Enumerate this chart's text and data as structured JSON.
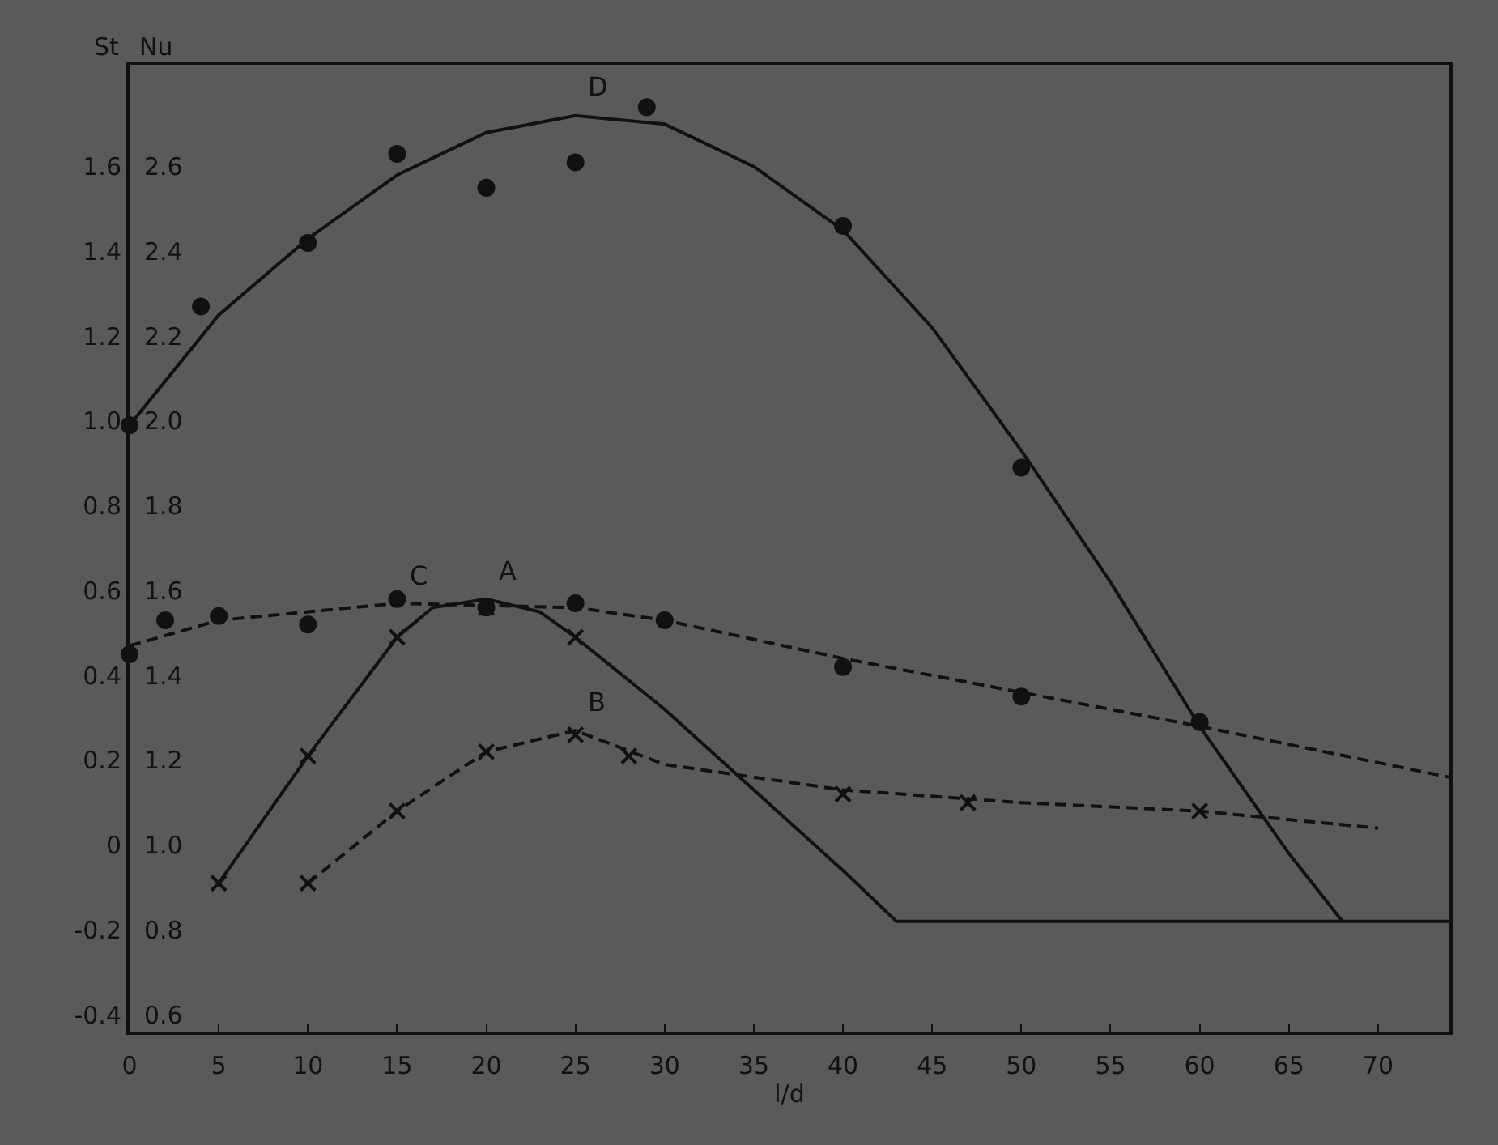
{
  "chart_data": {
    "type": "line",
    "xlabel": "l/d",
    "ylabel": "St",
    "y2label": "Nu",
    "xlim": [
      0,
      74
    ],
    "xticks": [
      0,
      5,
      10,
      15,
      20,
      25,
      30,
      35,
      40,
      45,
      50,
      55,
      60,
      65,
      70
    ],
    "ylim": [
      -0.44,
      1.84
    ],
    "yticks": [
      -0.4,
      -0.2,
      0,
      0.2,
      0.4,
      0.6,
      0.8,
      {
        "value": 1,
        "label": "1.0"
      },
      1.2,
      1.4,
      1.6
    ],
    "y2lim": [
      0.56,
      2.84
    ],
    "y2ticks": [
      0.6,
      0.8,
      {
        "value": 1,
        "label": "1.0"
      },
      1.2,
      1.4,
      1.6,
      1.8,
      {
        "value": 2,
        "label": "2.0"
      },
      2.2,
      2.4,
      2.6
    ],
    "grid": false,
    "series": [
      {
        "name": "D",
        "color": "#111111",
        "marker": "none",
        "line_style": "solid",
        "x": [
          0,
          5,
          10,
          15,
          20,
          25,
          30,
          35,
          40,
          45,
          50,
          55,
          60,
          65,
          68
        ],
        "values": [
          0.99,
          1.25,
          1.43,
          1.58,
          1.68,
          1.72,
          1.7,
          1.6,
          1.45,
          1.22,
          0.93,
          0.62,
          0.28,
          -0.02,
          -0.18
        ]
      },
      {
        "type": "scatter",
        "color": "#111111",
        "marker": "circle",
        "x": [
          0,
          4,
          10,
          15,
          20,
          25,
          29,
          40,
          50
        ],
        "values": [
          0.99,
          1.27,
          1.42,
          1.63,
          1.55,
          1.61,
          1.74,
          1.46,
          0.89
        ]
      },
      {
        "name": "C",
        "color": "#111111",
        "marker": "none",
        "line_style": "dashed",
        "x": [
          0,
          5,
          15,
          25,
          30,
          40,
          50,
          60,
          74
        ],
        "values": [
          0.47,
          0.53,
          0.57,
          0.56,
          0.53,
          0.44,
          0.36,
          0.28,
          0.16
        ]
      },
      {
        "type": "scatter",
        "color": "#111111",
        "marker": "circle",
        "x": [
          0,
          2,
          5,
          10,
          15,
          20,
          25,
          30,
          40,
          50,
          60
        ],
        "values": [
          0.45,
          0.53,
          0.54,
          0.52,
          0.58,
          0.56,
          0.57,
          0.53,
          0.42,
          0.35,
          0.29
        ]
      },
      {
        "name": "A",
        "color": "#111111",
        "marker": "none",
        "line_style": "solid",
        "x": [
          5,
          10,
          15,
          17,
          20,
          23,
          25,
          30,
          35,
          40,
          43,
          74
        ],
        "values": [
          -0.09,
          0.21,
          0.49,
          0.56,
          0.58,
          0.55,
          0.49,
          0.32,
          0.13,
          -0.06,
          -0.18,
          -0.18
        ]
      },
      {
        "type": "scatter",
        "color": "#111111",
        "marker": "cross",
        "x": [
          5,
          10,
          15,
          20,
          25
        ],
        "values": [
          -0.09,
          0.21,
          0.49,
          0.56,
          0.49
        ]
      },
      {
        "name": "B",
        "color": "#111111",
        "marker": "none",
        "line_style": "dashed",
        "x": [
          10,
          15,
          20,
          25,
          30,
          40,
          50,
          60,
          70
        ],
        "values": [
          -0.09,
          0.08,
          0.22,
          0.27,
          0.19,
          0.13,
          0.1,
          0.08,
          0.04
        ]
      },
      {
        "type": "scatter",
        "color": "#111111",
        "marker": "cross",
        "x": [
          10,
          15,
          20,
          25,
          28,
          40,
          47,
          60
        ],
        "values": [
          -0.09,
          0.08,
          0.22,
          0.26,
          0.21,
          0.12,
          0.1,
          0.08
        ]
      }
    ]
  }
}
